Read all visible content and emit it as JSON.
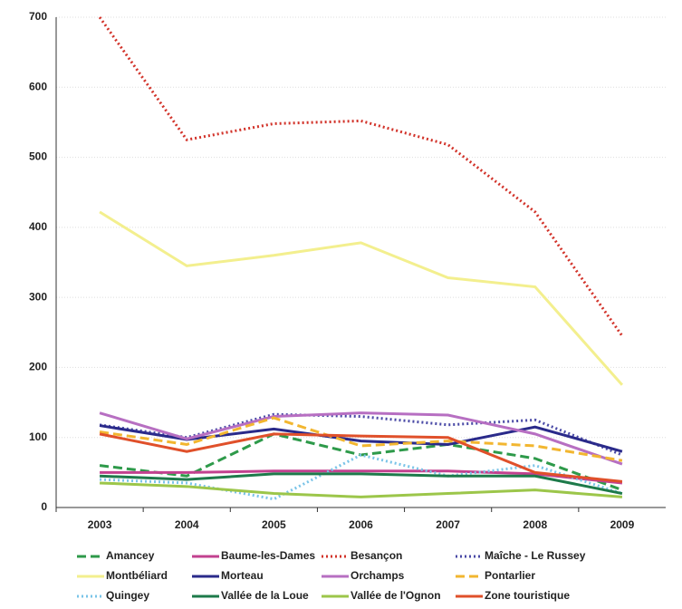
{
  "chart_data": {
    "type": "line",
    "categories": [
      "2003",
      "2004",
      "2005",
      "2006",
      "2007",
      "2008",
      "2009"
    ],
    "ylim": [
      0,
      700
    ],
    "yticks": [
      0,
      100,
      200,
      300,
      400,
      500,
      600,
      700
    ],
    "grid": true,
    "legend": "bottom",
    "series": [
      {
        "name": "Amancey",
        "color": "#2e9a4a",
        "dash": "dashed",
        "values": [
          60,
          45,
          105,
          75,
          90,
          70,
          25
        ]
      },
      {
        "name": "Baume-les-Dames",
        "color": "#c2418f",
        "dash": "solid",
        "values": [
          50,
          50,
          52,
          52,
          52,
          48,
          35
        ]
      },
      {
        "name": "Besançon",
        "color": "#d2332a",
        "dash": "dotted",
        "values": [
          700,
          525,
          548,
          552,
          518,
          422,
          245
        ]
      },
      {
        "name": "Maîche - Le Russey",
        "color": "#4a4aa6",
        "dash": "dotted",
        "values": [
          118,
          100,
          133,
          130,
          118,
          125,
          75
        ]
      },
      {
        "name": "Montbéliard",
        "color": "#f3ef8e",
        "dash": "solid",
        "values": [
          422,
          345,
          360,
          378,
          328,
          315,
          175
        ]
      },
      {
        "name": "Morteau",
        "color": "#2a2a8a",
        "dash": "solid",
        "values": [
          117,
          97,
          112,
          95,
          90,
          115,
          80
        ]
      },
      {
        "name": "Orchamps",
        "color": "#b76fc2",
        "dash": "solid",
        "values": [
          135,
          98,
          130,
          135,
          132,
          105,
          62
        ]
      },
      {
        "name": "Pontarlier",
        "color": "#f2b630",
        "dash": "dashed",
        "values": [
          108,
          90,
          128,
          88,
          95,
          88,
          67
        ]
      },
      {
        "name": "Quingey",
        "color": "#7ac4e8",
        "dash": "dotted",
        "values": [
          40,
          35,
          12,
          75,
          45,
          60,
          20
        ]
      },
      {
        "name": "Vallée de la Loue",
        "color": "#1d7a4a",
        "dash": "solid",
        "values": [
          45,
          40,
          48,
          48,
          45,
          45,
          20
        ]
      },
      {
        "name": "Vallée de l'Ognon",
        "color": "#9cc64a",
        "dash": "solid",
        "values": [
          35,
          30,
          20,
          15,
          20,
          25,
          15
        ]
      },
      {
        "name": "Zone touristique",
        "color": "#e0502a",
        "dash": "solid",
        "values": [
          105,
          80,
          105,
          102,
          100,
          50,
          37
        ]
      }
    ]
  }
}
